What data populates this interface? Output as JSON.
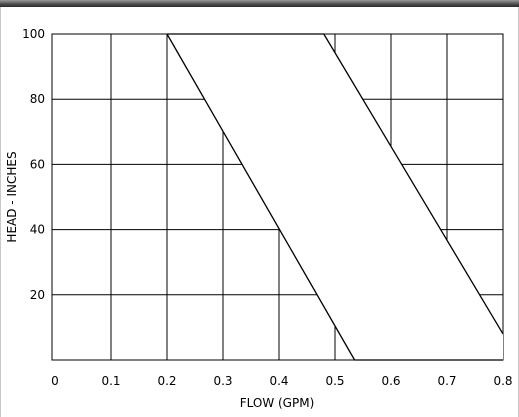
{
  "chart_data": {
    "type": "area",
    "title": "",
    "xlabel": "FLOW (GPM)",
    "ylabel": "HEAD - INCHES",
    "xlim": [
      0,
      0.8
    ],
    "ylim": [
      0,
      100
    ],
    "x_ticks": [
      "0",
      "0.1",
      "0.2",
      "0.3",
      "0.4",
      "0.5",
      "0.6",
      "0.7",
      "0.8"
    ],
    "y_ticks": [
      "20",
      "40",
      "60",
      "80",
      "100"
    ],
    "grid": true,
    "series": [
      {
        "x": [
          0.2,
          0.48,
          0.8,
          0.8,
          0.535,
          0.535
        ],
        "y": [
          100,
          100,
          8,
          0,
          0,
          0
        ]
      }
    ],
    "left_boundary": {
      "x": [
        0.2,
        0.535
      ],
      "y": [
        100,
        0
      ]
    },
    "right_boundary": {
      "x": [
        0.48,
        0.8
      ],
      "y": [
        100,
        8
      ]
    }
  }
}
